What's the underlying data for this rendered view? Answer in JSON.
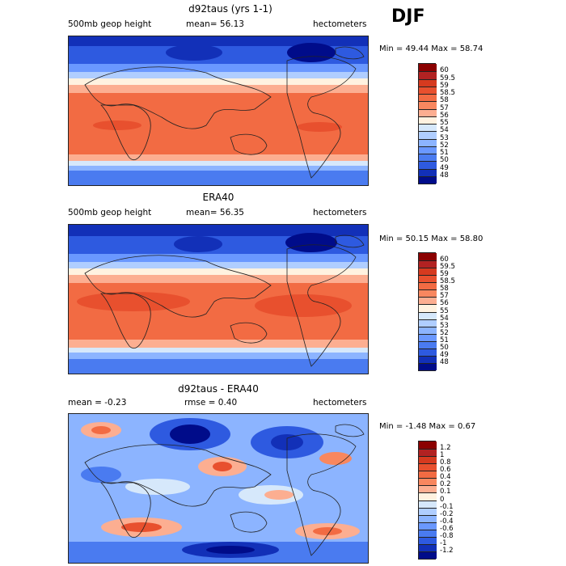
{
  "season": "DJF",
  "panels": [
    {
      "title": "d92taus (yrs 1-1)",
      "left_label": "500mb geop height",
      "mid_label": "mean=  56.13",
      "right_label": "hectometers",
      "minmax": "Min =  49.44 Max =  58.74",
      "kind": "field",
      "levels": [
        "60",
        "59.5",
        "59",
        "58.5",
        "58",
        "57",
        "56",
        "55",
        "54",
        "53",
        "52",
        "51",
        "50",
        "49",
        "48"
      ],
      "colors": [
        "#8b0000",
        "#b22222",
        "#d63a1f",
        "#e8502e",
        "#f26b43",
        "#f8875f",
        "#fcae91",
        "#fff2e0",
        "#d6e8fb",
        "#b0ceff",
        "#8cb4ff",
        "#6a98ff",
        "#4a7bf0",
        "#2e5ae0",
        "#1230b8",
        "#000c8a"
      ]
    },
    {
      "title": "ERA40",
      "left_label": "500mb geop height",
      "mid_label": "mean=  56.35",
      "right_label": "hectometers",
      "minmax": "Min =  50.15 Max =  58.80",
      "kind": "field",
      "levels": [
        "60",
        "59.5",
        "59",
        "58.5",
        "58",
        "57",
        "56",
        "55",
        "54",
        "53",
        "52",
        "51",
        "50",
        "49",
        "48"
      ],
      "colors": [
        "#8b0000",
        "#b22222",
        "#d63a1f",
        "#e8502e",
        "#f26b43",
        "#f8875f",
        "#fcae91",
        "#fff2e0",
        "#d6e8fb",
        "#b0ceff",
        "#8cb4ff",
        "#6a98ff",
        "#4a7bf0",
        "#2e5ae0",
        "#1230b8",
        "#000c8a"
      ]
    },
    {
      "title": "d92taus - ERA40",
      "left_label": "mean =  -0.23",
      "mid_label": "rmse =   0.40",
      "right_label": "hectometers",
      "minmax": "Min =  -1.48 Max =   0.67",
      "kind": "diff",
      "levels": [
        "1.2",
        "1",
        "0.8",
        "0.6",
        "0.4",
        "0.2",
        "0.1",
        "0",
        "-0.1",
        "-0.2",
        "-0.4",
        "-0.6",
        "-0.8",
        "-1",
        "-1.2"
      ],
      "colors": [
        "#8b0000",
        "#b22222",
        "#d63a1f",
        "#e8502e",
        "#f26b43",
        "#f8875f",
        "#fcae91",
        "#fff2e0",
        "#d6e8fb",
        "#b0ceff",
        "#8cb4ff",
        "#6a98ff",
        "#4a7bf0",
        "#2e5ae0",
        "#1230b8",
        "#000c8a"
      ]
    }
  ]
}
